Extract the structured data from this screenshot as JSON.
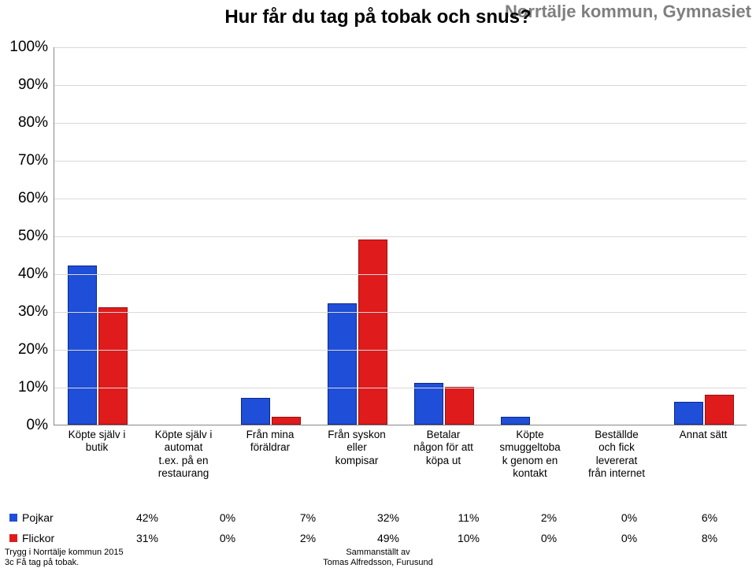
{
  "chart": {
    "type": "bar",
    "title": "Hur får du tag på tobak och snus?",
    "subtitle": "Norrtälje kommun, Gymnasiet",
    "background_color": "#ffffff",
    "grid_color": "#d9d9d9",
    "axis_color": "#888888",
    "font_family": "Arial",
    "title_fontsize": 24,
    "subtitle_fontsize": 22,
    "subtitle_color": "#7f7f7f",
    "ylabel_fontsize": 19,
    "xlabel_fontsize": 13.5,
    "ylim": [
      0,
      100
    ],
    "ytick_step": 10,
    "y_ticks": [
      "0%",
      "10%",
      "20%",
      "30%",
      "40%",
      "50%",
      "60%",
      "70%",
      "80%",
      "90%",
      "100%"
    ],
    "categories": [
      "Köpte själv i butik",
      "Köpte själv i automat t.ex. på en restaurang",
      "Från mina föräldrar",
      "Från syskon eller kompisar",
      "Betalar någon för att köpa ut",
      "Köpte smuggeltobak genom en kontakt",
      "Beställde och fick levererat från internet",
      "Annat sätt"
    ],
    "category_lines": [
      [
        "Köpte själv i",
        "butik"
      ],
      [
        "Köpte själv i",
        "automat",
        "t.ex. på en",
        "restaurang"
      ],
      [
        "Från mina",
        "föräldrar"
      ],
      [
        "Från syskon",
        "eller",
        "kompisar"
      ],
      [
        "Betalar",
        "någon för att",
        "köpa ut"
      ],
      [
        "Köpte",
        "smuggeltoba",
        "k genom en",
        "kontakt"
      ],
      [
        "Beställde",
        "och fick",
        "levererat",
        "från internet"
      ],
      [
        "Annat sätt"
      ]
    ],
    "series": [
      {
        "name": "Pojkar",
        "color_fill": "#1f4ed8",
        "color_border": "#0a2a88",
        "values": [
          42,
          0,
          7,
          32,
          11,
          2,
          0,
          6
        ],
        "display": [
          "42%",
          "0%",
          "7%",
          "32%",
          "11%",
          "2%",
          "0%",
          "6%"
        ]
      },
      {
        "name": "Flickor",
        "color_fill": "#e01b1b",
        "color_border": "#9c0f0f",
        "values": [
          31,
          0,
          2,
          49,
          10,
          0,
          0,
          8
        ],
        "display": [
          "31%",
          "0%",
          "2%",
          "49%",
          "10%",
          "0%",
          "0%",
          "8%"
        ]
      }
    ],
    "bar_width_ratio": 0.34,
    "bar_gap_ratio": 0.02,
    "group_inner_padding_ratio": 0.15
  },
  "footer": {
    "left_line1": "Trygg i Norrtälje kommun 2015",
    "left_line2": "3c Få tag på tobak.",
    "center_line1": "Sammanställt av",
    "center_line2": "Tomas Alfredsson, Furusund"
  }
}
